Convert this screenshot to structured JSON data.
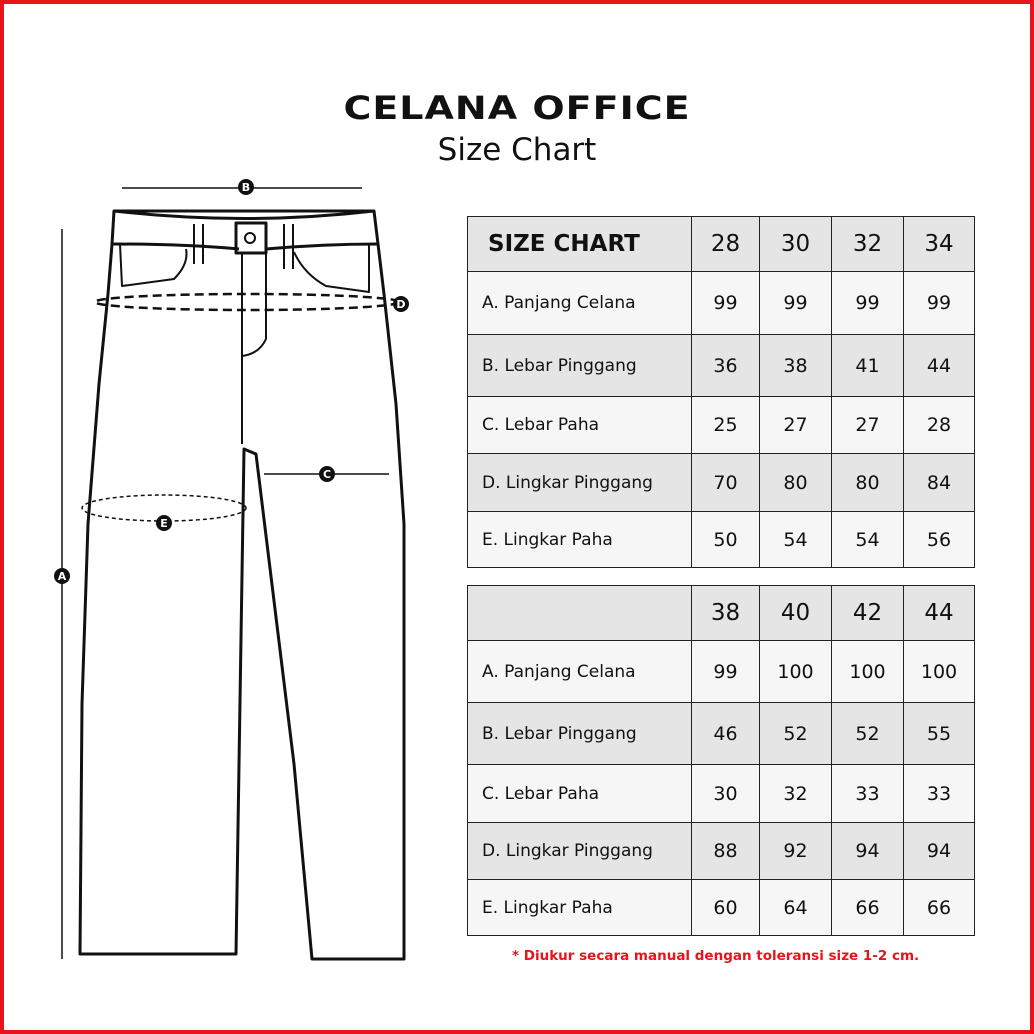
{
  "title": "CELANA OFFICE",
  "subtitle": "Size Chart",
  "diagram_labels": {
    "a": "A",
    "b": "B",
    "c": "C",
    "d": "D",
    "e": "E"
  },
  "table1": {
    "header": [
      "SIZE CHART",
      "28",
      "30",
      "32",
      "34"
    ],
    "rows": [
      [
        "A. Panjang Celana",
        "99",
        "99",
        "99",
        "99"
      ],
      [
        "B. Lebar Pinggang",
        "36",
        "38",
        "41",
        "44"
      ],
      [
        "C. Lebar Paha",
        "25",
        "27",
        "27",
        "28"
      ],
      [
        "D. Lingkar Pinggang",
        "70",
        "80",
        "80",
        "84"
      ],
      [
        "E. Lingkar Paha",
        "50",
        "54",
        "54",
        "56"
      ]
    ]
  },
  "table2": {
    "header": [
      "",
      "38",
      "40",
      "42",
      "44"
    ],
    "rows": [
      [
        "A. Panjang Celana",
        "99",
        "100",
        "100",
        "100"
      ],
      [
        "B. Lebar Pinggang",
        "46",
        "52",
        "52",
        "55"
      ],
      [
        "C. Lebar Paha",
        "30",
        "32",
        "33",
        "33"
      ],
      [
        "D. Lingkar Pinggang",
        "88",
        "92",
        "94",
        "94"
      ],
      [
        "E. Lingkar Paha",
        "60",
        "64",
        "66",
        "66"
      ]
    ]
  },
  "note": "* Diukur secara manual dengan toleransi size 1-2 cm.",
  "colors": {
    "accent": "#e8141c",
    "header_bg": "#e6e5e6",
    "row_light": "#f6f6f6"
  }
}
